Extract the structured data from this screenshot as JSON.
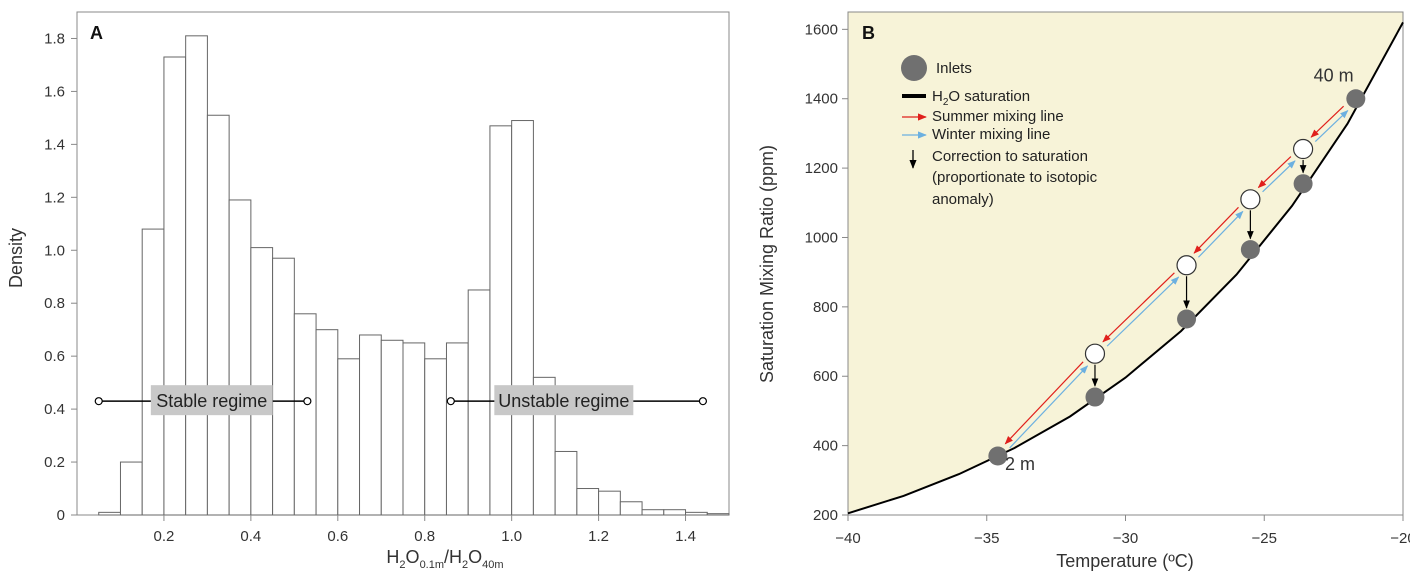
{
  "colors": {
    "bar_fill": "#ffffff",
    "bar_stroke": "#666666",
    "panel_b_background": "#f7f3d8",
    "inlet_fill": "#707070",
    "open_point_fill": "#ffffff",
    "saturation_curve": "#000000",
    "summer_arrow": "#e0201c",
    "winter_arrow": "#6cb0e0",
    "correction_arrow": "#000000",
    "regime_box": "#c8c8c8"
  },
  "chart_data": [
    {
      "type": "bar",
      "panel_label": "A",
      "xlabel": "H2O0.1m/H2O40m",
      "xlabel_parts": {
        "a": "H",
        "a_sub": "2",
        "b": "O",
        "b_sub": "0.1m",
        "slash": "/H",
        "c_sub": "2",
        "d": "O",
        "d_sub": "40m"
      },
      "ylabel": "Density",
      "xlim": [
        0.0,
        1.5
      ],
      "ylim": [
        0,
        1.9
      ],
      "xticks": [
        0.2,
        0.4,
        0.6,
        0.8,
        1.0,
        1.2,
        1.4
      ],
      "xtick_labels": [
        "0.2",
        "0.4",
        "0.6",
        "0.8",
        "1.0",
        "1.2",
        "1.4"
      ],
      "yticks": [
        0,
        0.2,
        0.4,
        0.6,
        0.8,
        1.0,
        1.2,
        1.4,
        1.6,
        1.8
      ],
      "ytick_labels": [
        "0",
        "0.2",
        "0.4",
        "0.6",
        "0.8",
        "1.0",
        "1.2",
        "1.4",
        "1.6",
        "1.8"
      ],
      "bin_width": 0.05,
      "bin_starts": [
        0.05,
        0.1,
        0.15,
        0.2,
        0.25,
        0.3,
        0.35,
        0.4,
        0.45,
        0.5,
        0.55,
        0.6,
        0.65,
        0.7,
        0.75,
        0.8,
        0.85,
        0.9,
        0.95,
        1.0,
        1.05,
        1.1,
        1.15,
        1.2,
        1.25,
        1.3,
        1.35,
        1.4,
        1.45
      ],
      "values": [
        0.01,
        0.2,
        1.08,
        1.73,
        1.81,
        1.51,
        1.19,
        1.01,
        0.97,
        0.76,
        0.7,
        0.59,
        0.68,
        0.66,
        0.65,
        0.59,
        0.65,
        0.85,
        1.47,
        1.49,
        0.52,
        0.24,
        0.1,
        0.09,
        0.05,
        0.02,
        0.02,
        0.01,
        0.005
      ],
      "annotations": [
        {
          "label": "Stable regime",
          "x_start": 0.05,
          "x_end": 0.53,
          "y": 0.43,
          "label_x": 0.31
        },
        {
          "label": "Unstable regime",
          "x_start": 0.86,
          "x_end": 1.44,
          "y": 0.43,
          "label_x": 1.12
        }
      ]
    },
    {
      "type": "scatter",
      "panel_label": "B",
      "xlabel": "Temperature (ºC)",
      "ylabel": "Saturation Mixing Ratio (ppm)",
      "xlim": [
        -40,
        -20
      ],
      "ylim": [
        200,
        1650
      ],
      "xticks": [
        -40,
        -35,
        -30,
        -25,
        -20
      ],
      "xtick_labels": [
        "−40",
        "−35",
        "−30",
        "−25",
        "−20"
      ],
      "yticks": [
        200,
        400,
        600,
        800,
        1000,
        1200,
        1400,
        1600
      ],
      "ytick_labels": [
        "200",
        "400",
        "600",
        "800",
        "1000",
        "1200",
        "1400",
        "1600"
      ],
      "saturation_curve": {
        "x": [
          -40,
          -38,
          -36,
          -34,
          -32,
          -30,
          -28,
          -26,
          -24,
          -22,
          -20
        ],
        "y": [
          205,
          255,
          318,
          393,
          484,
          596,
          730,
          893,
          1091,
          1328,
          1620
        ]
      },
      "inlets": [
        {
          "x": -34.6,
          "y": 370
        },
        {
          "x": -31.1,
          "y": 540
        },
        {
          "x": -27.8,
          "y": 765
        },
        {
          "x": -25.5,
          "y": 965
        },
        {
          "x": -23.6,
          "y": 1155
        },
        {
          "x": -21.7,
          "y": 1400
        }
      ],
      "open_points": [
        {
          "x": -31.1,
          "y": 665
        },
        {
          "x": -27.8,
          "y": 920
        },
        {
          "x": -25.5,
          "y": 1110
        },
        {
          "x": -23.6,
          "y": 1255
        }
      ],
      "height_labels": [
        {
          "label": "2 m",
          "x": -33.8,
          "y": 330
        },
        {
          "label": "40 m",
          "x": -22.5,
          "y": 1450
        }
      ],
      "legend": {
        "inlets": "Inlets",
        "saturation_parts": {
          "a": "H",
          "sub": "2",
          "b": "O saturation"
        },
        "summer": "Summer mixing line",
        "winter": "Winter mixing line",
        "correction": [
          "Correction to saturation",
          "(proportionate to isotopic",
          "anomaly)"
        ]
      }
    }
  ]
}
